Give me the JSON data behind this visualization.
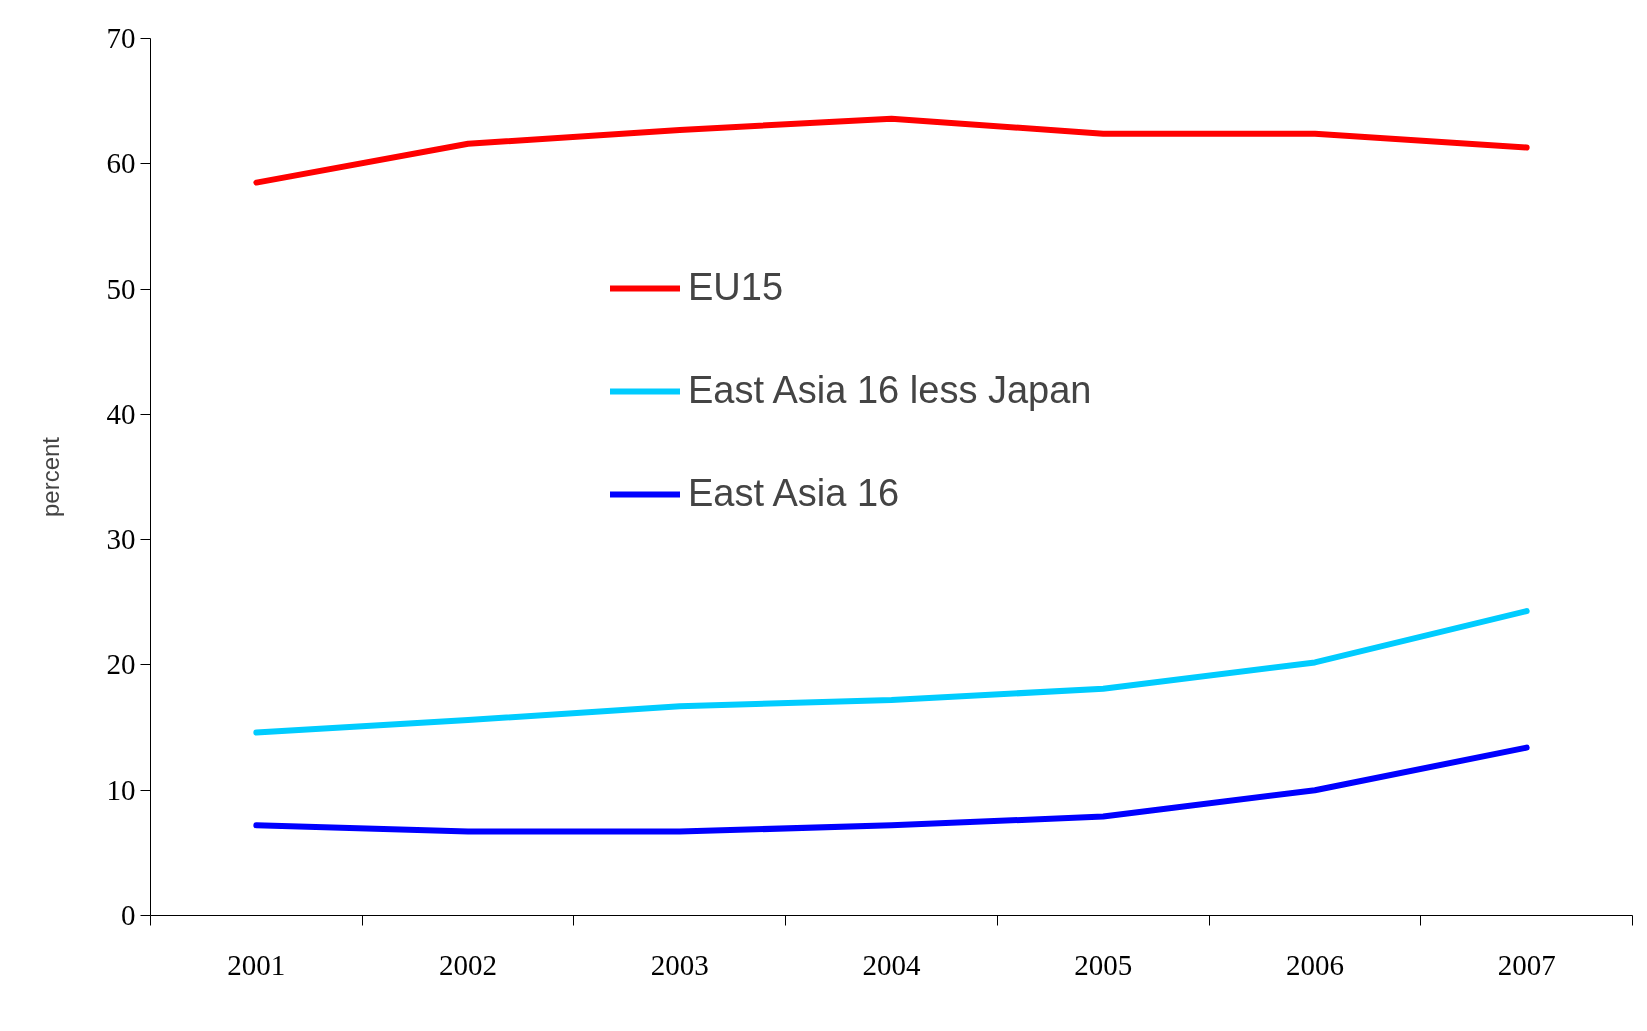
{
  "chart_data": {
    "type": "line",
    "ylabel": "percent",
    "categories": [
      "2001",
      "2002",
      "2003",
      "2004",
      "2005",
      "2006",
      "2007"
    ],
    "series": [
      {
        "name": "EU15",
        "color": "#ff0000",
        "values": [
          58.5,
          61.6,
          62.7,
          63.6,
          62.4,
          62.4,
          61.3
        ]
      },
      {
        "name": "East Asia 16 less Japan",
        "color": "#00ccff",
        "values": [
          14.6,
          15.6,
          16.7,
          17.2,
          18.1,
          20.2,
          24.3
        ]
      },
      {
        "name": "East Asia 16",
        "color": "#0000ff",
        "values": [
          7.2,
          6.7,
          6.7,
          7.2,
          7.9,
          10.0,
          13.4
        ]
      }
    ],
    "ylim": [
      0,
      70
    ],
    "yticks": [
      0,
      10,
      20,
      30,
      40,
      50,
      60,
      70
    ],
    "legend": "top",
    "grid": false,
    "marker": "none",
    "line_style": "solid"
  }
}
